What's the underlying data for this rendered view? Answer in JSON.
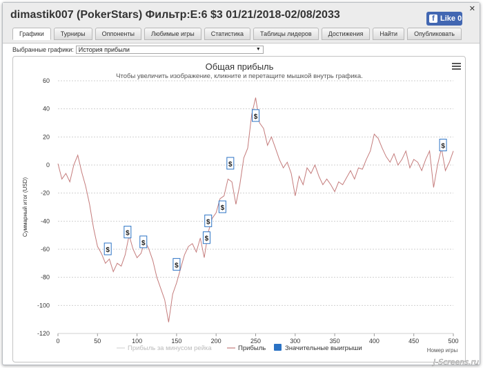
{
  "window": {
    "title": "dimastik007 (PokerStars) Фильтр:E:6 $3 01/21/2018-02/08/2033",
    "close_symbol": "✕",
    "like_label": "Like 0",
    "like_icon_glyph": "f"
  },
  "tabs": [
    {
      "label": "Графики",
      "active": true
    },
    {
      "label": "Турниры",
      "active": false
    },
    {
      "label": "Оппоненты",
      "active": false
    },
    {
      "label": "Любимые игры",
      "active": false
    },
    {
      "label": "Статистика",
      "active": false
    },
    {
      "label": "Таблицы лидеров",
      "active": false
    },
    {
      "label": "Достижения",
      "active": false
    },
    {
      "label": "Найти",
      "active": false
    },
    {
      "label": "Опубликовать",
      "active": false
    }
  ],
  "graph_selector": {
    "label": "Выбранные графики:",
    "value": "История прибыли"
  },
  "chart_data": {
    "type": "line",
    "title": "Общая прибыль",
    "subtitle": "Чтобы увеличить изображение, кликните и перетащите мышкой внутрь графика.",
    "xlabel": "Номер игры",
    "ylabel": "Суммарный итог (USD)",
    "xlim": [
      0,
      500
    ],
    "ylim": [
      -120,
      60
    ],
    "x_ticks": [
      0,
      50,
      100,
      150,
      200,
      250,
      300,
      350,
      400,
      450,
      500
    ],
    "y_ticks": [
      -120,
      -100,
      -80,
      -60,
      -40,
      -20,
      0,
      20,
      40,
      60
    ],
    "grid": true,
    "legend_position": "bottom",
    "series": [
      {
        "name": "Прибыль за минусом рейка",
        "color": "#cccccc",
        "hidden": true,
        "values": []
      },
      {
        "name": "Прибыль",
        "color": "#c47b7b",
        "x": [
          0,
          5,
          10,
          15,
          20,
          25,
          30,
          35,
          40,
          45,
          50,
          55,
          60,
          65,
          70,
          75,
          80,
          85,
          90,
          95,
          100,
          105,
          110,
          115,
          120,
          125,
          130,
          135,
          140,
          145,
          150,
          155,
          160,
          165,
          170,
          175,
          180,
          185,
          190,
          195,
          200,
          205,
          210,
          215,
          220,
          225,
          230,
          235,
          240,
          245,
          250,
          255,
          260,
          265,
          270,
          275,
          280,
          285,
          290,
          295,
          300,
          305,
          310,
          315,
          320,
          325,
          330,
          335,
          340,
          345,
          350,
          355,
          360,
          365,
          370,
          375,
          380,
          385,
          390,
          395,
          400,
          405,
          410,
          415,
          420,
          425,
          430,
          435,
          440,
          445,
          450,
          455,
          460,
          465,
          470,
          475,
          480,
          485,
          490,
          495,
          500
        ],
        "values": [
          1,
          -10,
          -6,
          -12,
          0,
          7,
          -5,
          -15,
          -28,
          -45,
          -58,
          -63,
          -70,
          -67,
          -76,
          -70,
          -72,
          -64,
          -50,
          -60,
          -66,
          -63,
          -54,
          -60,
          -68,
          -80,
          -88,
          -96,
          -112,
          -92,
          -84,
          -74,
          -64,
          -58,
          -56,
          -62,
          -52,
          -66,
          -48,
          -38,
          -34,
          -24,
          -22,
          -10,
          -12,
          -28,
          -14,
          5,
          12,
          36,
          48,
          30,
          26,
          14,
          20,
          12,
          4,
          -2,
          2,
          -6,
          -22,
          -8,
          -14,
          -2,
          -6,
          0,
          -8,
          -14,
          -10,
          -14,
          -19,
          -12,
          -14,
          -9,
          -4,
          -10,
          -2,
          -3,
          4,
          10,
          22,
          19,
          12,
          6,
          2,
          8,
          0,
          4,
          10,
          -2,
          4,
          2,
          -4,
          4,
          10,
          -16,
          0,
          12,
          -4,
          2,
          10
        ]
      }
    ],
    "significant_wins": {
      "name": "Значительные выигрыши",
      "color": "#2a72c4",
      "marker": "$",
      "points": [
        {
          "x": 63,
          "y": -60
        },
        {
          "x": 88,
          "y": -48
        },
        {
          "x": 108,
          "y": -55
        },
        {
          "x": 150,
          "y": -71
        },
        {
          "x": 188,
          "y": -52
        },
        {
          "x": 190,
          "y": -40
        },
        {
          "x": 208,
          "y": -30
        },
        {
          "x": 218,
          "y": 1
        },
        {
          "x": 250,
          "y": 35
        },
        {
          "x": 487,
          "y": 14
        }
      ]
    }
  },
  "watermark": "J-Screens.ru"
}
